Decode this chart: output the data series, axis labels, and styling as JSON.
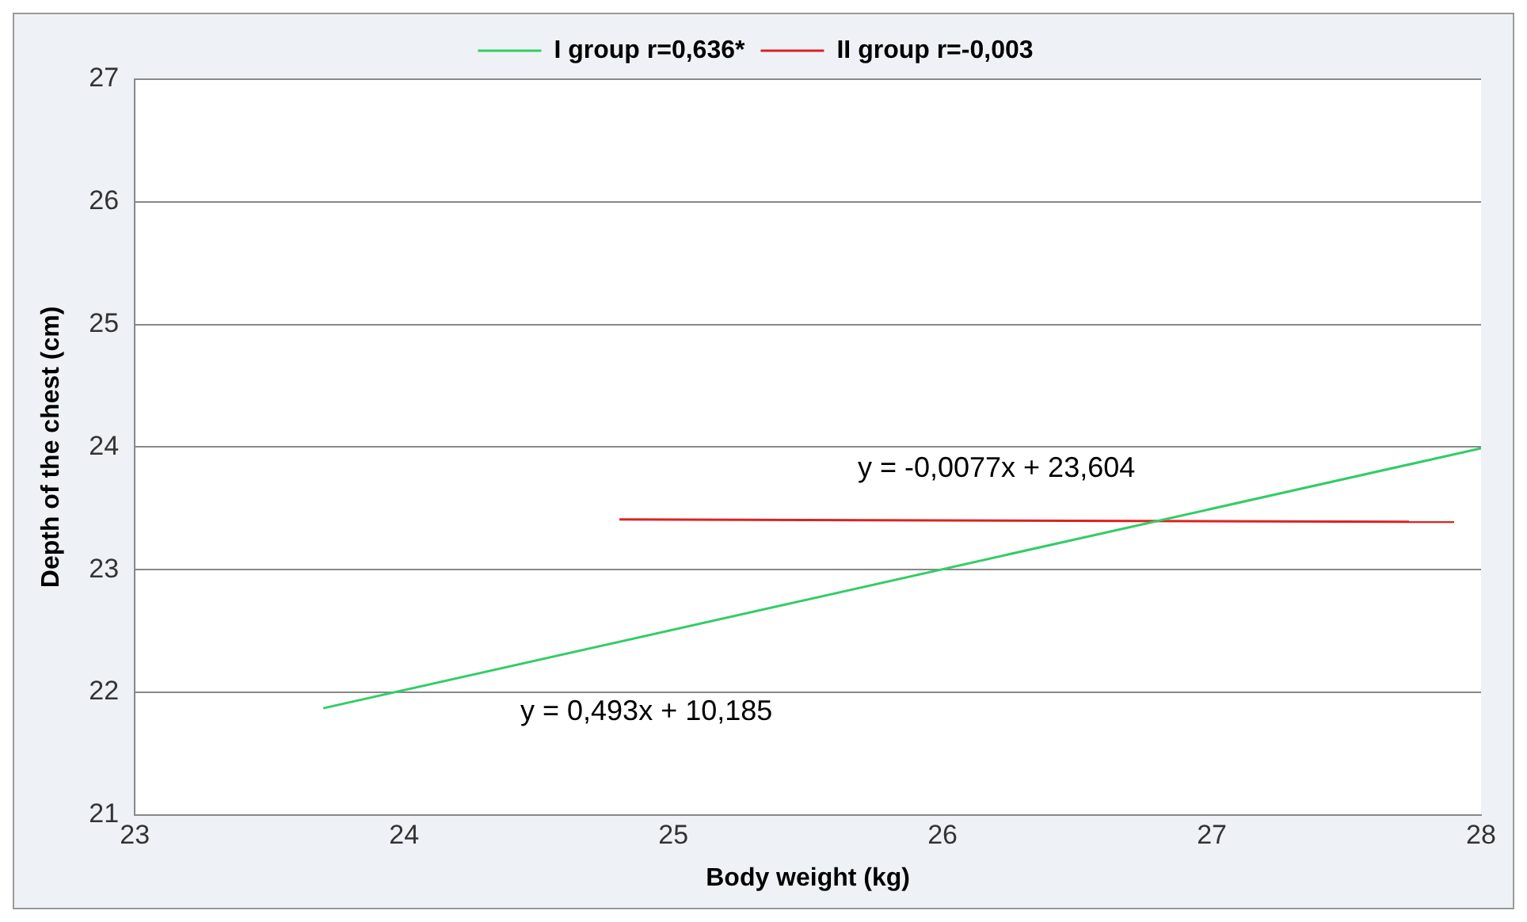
{
  "chart_data": {
    "type": "line",
    "xlabel": "Body weight (kg)",
    "ylabel": "Depth of the chest (cm)",
    "xlim": [
      23,
      28
    ],
    "xticks": [
      23,
      24,
      25,
      26,
      27,
      28
    ],
    "ylim": [
      21,
      27
    ],
    "yticks": [
      21,
      22,
      23,
      24,
      25,
      26,
      27
    ],
    "grid": "y",
    "legend": "top",
    "marker": "none",
    "line_style": "solid",
    "series": [
      {
        "name": "I group r=0,636*",
        "color": "#33cc66",
        "x": [
          23.7,
          28
        ],
        "values": [
          21.87,
          23.99
        ]
      },
      {
        "name": "II group r=-0,003",
        "color": "#dd2222",
        "x": [
          24.8,
          27.9
        ],
        "values": [
          23.41,
          23.39
        ]
      }
    ],
    "annotations": [
      "y = -0,0077x + 23,604",
      "y = 0,493x + 10,185"
    ]
  }
}
